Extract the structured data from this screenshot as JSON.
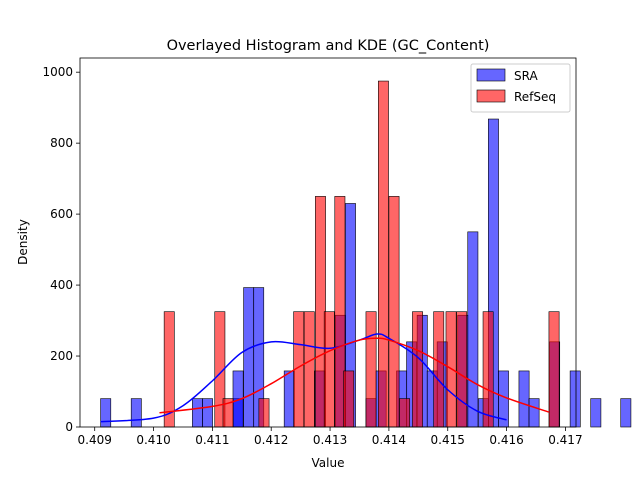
{
  "chart_data": {
    "type": "histogram+kde",
    "title": "Overlayed Histogram and KDE (GC_Content)",
    "xlabel": "Value",
    "ylabel": "Density",
    "xlim": [
      0.40875,
      0.41718
    ],
    "ylim": [
      0,
      1040
    ],
    "xticks": [
      0.409,
      0.41,
      0.411,
      0.412,
      0.413,
      0.414,
      0.415,
      0.416,
      0.417
    ],
    "xtick_labels": [
      "0.409",
      "0.410",
      "0.411",
      "0.412",
      "0.413",
      "0.414",
      "0.415",
      "0.416",
      "0.417"
    ],
    "yticks": [
      0,
      200,
      400,
      600,
      800,
      1000
    ],
    "ytick_labels": [
      "0",
      "200",
      "400",
      "600",
      "800",
      "1000"
    ],
    "grid": false,
    "legend_position": "top-right",
    "series": [
      {
        "name": "SRA",
        "color": "#0000ff",
        "fill_opacity": 0.6,
        "bin_width": 0.0001736,
        "bins": [
          [
            0.4091,
            80
          ],
          [
            0.40962,
            80
          ],
          [
            0.41066,
            80
          ],
          [
            0.41083,
            80
          ],
          [
            0.41135,
            80
          ],
          [
            0.41135,
            158
          ],
          [
            0.41153,
            393
          ],
          [
            0.4117,
            393
          ],
          [
            0.41222,
            158
          ],
          [
            0.41274,
            158
          ],
          [
            0.41309,
            315
          ],
          [
            0.41326,
            630
          ],
          [
            0.41361,
            80
          ],
          [
            0.41378,
            158
          ],
          [
            0.41413,
            158
          ],
          [
            0.4143,
            240
          ],
          [
            0.41448,
            315
          ],
          [
            0.41465,
            158
          ],
          [
            0.41482,
            240
          ],
          [
            0.41517,
            315
          ],
          [
            0.41534,
            550
          ],
          [
            0.41552,
            80
          ],
          [
            0.41569,
            868
          ],
          [
            0.41586,
            158
          ],
          [
            0.41621,
            158
          ],
          [
            0.41638,
            80
          ],
          [
            0.41673,
            240
          ],
          [
            0.41708,
            158
          ],
          [
            0.41743,
            80
          ],
          [
            0.41794,
            80
          ]
        ],
        "kde": {
          "x": [
            0.4091,
            0.41,
            0.4105,
            0.411,
            0.4115,
            0.412,
            0.4125,
            0.413,
            0.4135,
            0.4138,
            0.414,
            0.4145,
            0.415,
            0.4155,
            0.416
          ],
          "y": [
            15,
            25,
            60,
            130,
            210,
            240,
            232,
            222,
            245,
            262,
            250,
            195,
            105,
            45,
            20
          ]
        }
      },
      {
        "name": "RefSeq",
        "color": "#ff0000",
        "fill_opacity": 0.6,
        "bin_width": 0.0001736,
        "bins": [
          [
            0.41018,
            325
          ],
          [
            0.41104,
            325
          ],
          [
            0.41118,
            80
          ],
          [
            0.41179,
            80
          ],
          [
            0.41238,
            325
          ],
          [
            0.41256,
            325
          ],
          [
            0.41275,
            650
          ],
          [
            0.4129,
            325
          ],
          [
            0.41308,
            650
          ],
          [
            0.41323,
            158
          ],
          [
            0.41361,
            325
          ],
          [
            0.41382,
            975
          ],
          [
            0.414,
            650
          ],
          [
            0.41418,
            80
          ],
          [
            0.4144,
            325
          ],
          [
            0.41476,
            325
          ],
          [
            0.41497,
            325
          ],
          [
            0.41515,
            325
          ],
          [
            0.4156,
            325
          ],
          [
            0.41672,
            325
          ]
        ],
        "kde": {
          "x": [
            0.4101,
            0.411,
            0.4115,
            0.412,
            0.4125,
            0.413,
            0.4135,
            0.4138,
            0.414,
            0.4145,
            0.415,
            0.4155,
            0.416,
            0.41672
          ],
          "y": [
            40,
            58,
            80,
            122,
            172,
            215,
            245,
            250,
            245,
            215,
            170,
            120,
            82,
            42
          ]
        }
      }
    ]
  }
}
